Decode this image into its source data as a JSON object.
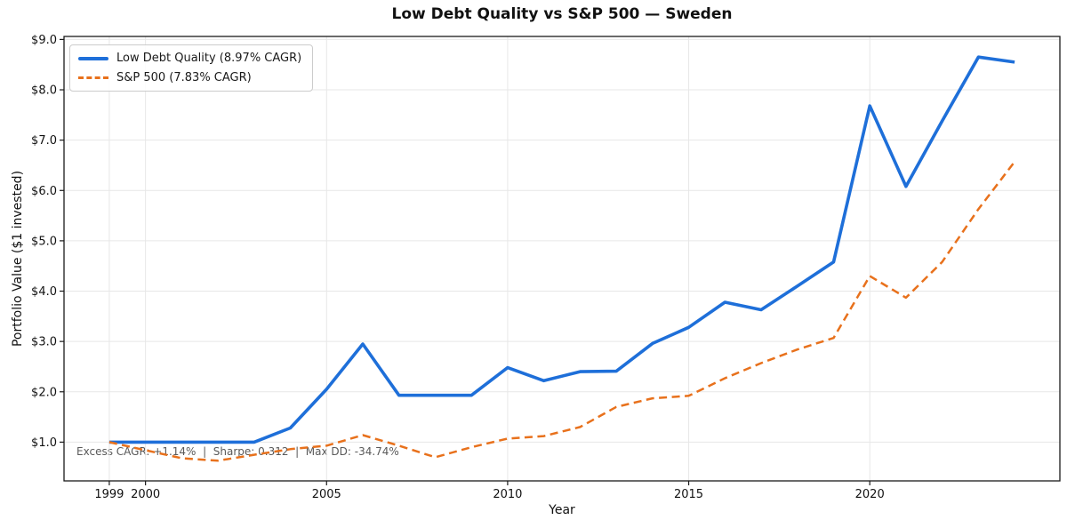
{
  "chart_data": {
    "type": "line",
    "title": "Low Debt Quality vs S&P 500 — Sweden",
    "xlabel": "Year",
    "ylabel": "Portfolio Value ($1 invested)",
    "annotation": "Excess CAGR: +1.14%  |  Sharpe: 0.312  |  Max DD: -34.74%",
    "x": [
      1999,
      2000,
      2001,
      2002,
      2003,
      2004,
      2005,
      2006,
      2007,
      2008,
      2009,
      2010,
      2011,
      2012,
      2013,
      2014,
      2015,
      2016,
      2017,
      2018,
      2019,
      2020,
      2021,
      2022,
      2023,
      2024
    ],
    "series": [
      {
        "name": "Low Debt Quality (8.97% CAGR)",
        "color": "#1e6fd9",
        "style": "solid",
        "values": [
          1.0,
          1.0,
          1.0,
          1.0,
          1.0,
          1.28,
          2.05,
          2.95,
          1.93,
          1.93,
          1.93,
          2.48,
          2.22,
          2.4,
          2.41,
          2.96,
          3.28,
          3.78,
          3.63,
          4.1,
          4.58,
          7.68,
          6.08,
          7.38,
          8.65,
          8.55
        ]
      },
      {
        "name": "S&P 500 (7.83% CAGR)",
        "color": "#e8711c",
        "style": "dashed",
        "values": [
          1.0,
          0.84,
          0.68,
          0.63,
          0.75,
          0.86,
          0.93,
          1.14,
          0.93,
          0.7,
          0.9,
          1.07,
          1.12,
          1.3,
          1.7,
          1.87,
          1.92,
          2.27,
          2.57,
          2.84,
          3.07,
          4.3,
          3.87,
          4.58,
          5.63,
          6.57
        ]
      }
    ],
    "xlim": [
      1997.75,
      2025.25
    ],
    "ylim": [
      0.23,
      9.06
    ],
    "x_ticks": [
      1999,
      2000,
      2005,
      2010,
      2015,
      2020
    ],
    "x_tick_labels": [
      "1999",
      "2000",
      "2005",
      "2010",
      "2015",
      "2020"
    ],
    "y_ticks": [
      1,
      2,
      3,
      4,
      5,
      6,
      7,
      8,
      9
    ],
    "y_tick_labels": [
      "$1.0",
      "$2.0",
      "$3.0",
      "$4.0",
      "$5.0",
      "$6.0",
      "$7.0",
      "$8.0",
      "$9.0"
    ],
    "grid": true,
    "legend_position": "upper-left",
    "colors": {
      "grid": "#e7e7e7",
      "spine": "#1a1a1a",
      "tick_text": "#111111",
      "annotation_text": "#595959"
    }
  }
}
